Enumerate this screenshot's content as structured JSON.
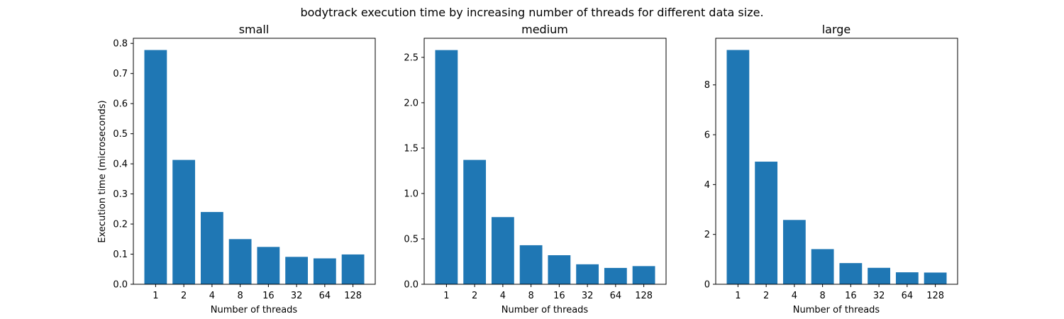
{
  "figure": {
    "suptitle": "bodytrack execution time by increasing number of threads for different data size."
  },
  "chart_data": [
    {
      "type": "bar",
      "title": "small",
      "categories": [
        "1",
        "2",
        "4",
        "8",
        "16",
        "32",
        "64",
        "128"
      ],
      "values": [
        0.778,
        0.413,
        0.24,
        0.15,
        0.124,
        0.091,
        0.086,
        0.099
      ],
      "xlabel": "Number of threads",
      "ylabel": "Execution time (microseconds)",
      "ylim": [
        0,
        0.817
      ],
      "yticks": [
        0.0,
        0.1,
        0.2,
        0.3,
        0.4,
        0.5,
        0.6,
        0.7,
        0.8
      ],
      "ytick_labels": [
        "0.0",
        "0.1",
        "0.2",
        "0.3",
        "0.4",
        "0.5",
        "0.6",
        "0.7",
        "0.8"
      ],
      "color": "#1f77b4",
      "grid": false
    },
    {
      "type": "bar",
      "title": "medium",
      "categories": [
        "1",
        "2",
        "4",
        "8",
        "16",
        "32",
        "64",
        "128"
      ],
      "values": [
        2.58,
        1.37,
        0.74,
        0.43,
        0.32,
        0.22,
        0.18,
        0.2
      ],
      "xlabel": "Number of threads",
      "ylabel": "",
      "ylim": [
        0,
        2.71
      ],
      "yticks": [
        0.0,
        0.5,
        1.0,
        1.5,
        2.0,
        2.5
      ],
      "ytick_labels": [
        "0.0",
        "0.5",
        "1.0",
        "1.5",
        "2.0",
        "2.5"
      ],
      "color": "#1f77b4",
      "grid": false
    },
    {
      "type": "bar",
      "title": "large",
      "categories": [
        "1",
        "2",
        "4",
        "8",
        "16",
        "32",
        "64",
        "128"
      ],
      "values": [
        9.4,
        4.92,
        2.58,
        1.41,
        0.85,
        0.66,
        0.48,
        0.47
      ],
      "xlabel": "Number of threads",
      "ylabel": "",
      "ylim": [
        0,
        9.87
      ],
      "yticks": [
        0,
        2,
        4,
        6,
        8
      ],
      "ytick_labels": [
        "0",
        "2",
        "4",
        "6",
        "8"
      ],
      "color": "#1f77b4",
      "grid": false
    }
  ]
}
